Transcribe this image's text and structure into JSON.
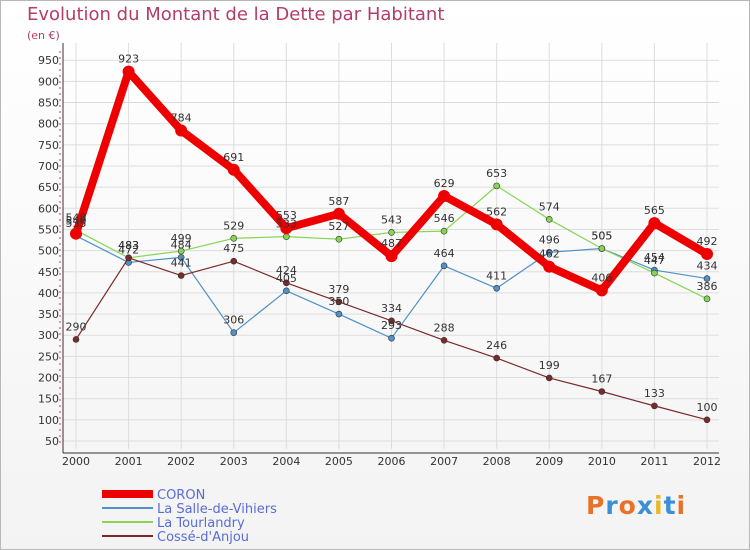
{
  "chart_data": {
    "type": "line",
    "title": "Evolution du Montant de la Dette par Habitant",
    "unit": "(en €)",
    "x": [
      "2000",
      "2001",
      "2002",
      "2003",
      "2004",
      "2005",
      "2006",
      "2007",
      "2008",
      "2009",
      "2010",
      "2011",
      "2012"
    ],
    "yticks": [
      50,
      100,
      150,
      200,
      250,
      300,
      350,
      400,
      450,
      500,
      550,
      600,
      650,
      700,
      750,
      800,
      850,
      900,
      950
    ],
    "ylim": [
      50,
      960
    ],
    "grid": true,
    "legend_position": "bottom-left",
    "series": [
      {
        "name": "CORON",
        "color": "#ee0000",
        "values": [
          540,
          923,
          784,
          691,
          553,
          587,
          487,
          629,
          562,
          462,
          406,
          565,
          492
        ],
        "labels": [
          "540",
          "923",
          "784",
          "691",
          "553",
          "587",
          "487",
          "629",
          "562",
          "462",
          "406",
          "565",
          "492"
        ]
      },
      {
        "name": "La Salle-de-Vihiers",
        "color": "#4f91c8",
        "values": [
          535,
          472,
          484,
          306,
          405,
          350,
          293,
          464,
          411,
          496,
          505,
          454,
          434
        ],
        "labels": [
          "535",
          "472",
          "484",
          "306",
          "405",
          "350",
          "293",
          "464",
          "411",
          "496",
          "505",
          "454",
          "434"
        ]
      },
      {
        "name": "La Tourlandry",
        "color": "#86d550",
        "values": [
          548,
          483,
          499,
          529,
          533,
          527,
          543,
          546,
          653,
          574,
          505,
          447,
          386
        ],
        "labels": [
          "548",
          "483",
          "499",
          "529",
          "533",
          "527",
          "543",
          "546",
          "653",
          "574",
          "505",
          "447",
          "386"
        ]
      },
      {
        "name": "Cossé-d'Anjou",
        "color": "#7a2a2a",
        "values": [
          290,
          483,
          441,
          475,
          424,
          379,
          334,
          288,
          246,
          199,
          167,
          133,
          100
        ],
        "labels": [
          "290",
          "483",
          "441",
          "475",
          "424",
          "379",
          "334",
          "288",
          "246",
          "199",
          "167",
          "133",
          "100"
        ]
      }
    ]
  },
  "logo": {
    "text": "Proxiti",
    "colors": [
      "#e8722a",
      "#3a8fd6",
      "#e8722a",
      "#3a8fd6",
      "#e8b92a",
      "#3a8fd6",
      "#e8722a"
    ]
  }
}
